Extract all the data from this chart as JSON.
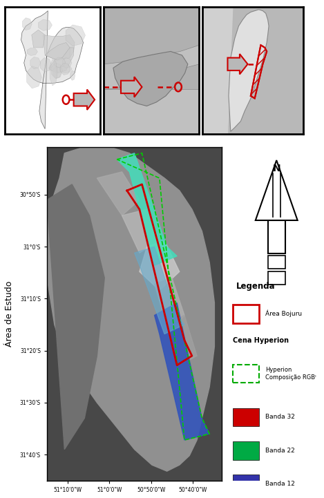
{
  "fig_width": 4.69,
  "fig_height": 7.21,
  "fig_dpi": 100,
  "bg_color": "#ffffff",
  "arrow_color": "#cc0000",
  "arrow_fill": "#b8b8b8",
  "area_red": "#cc0000",
  "map_dark_bg": "#484848",
  "legend_title": "Legenda",
  "ylabel_main": "Área de Estudo",
  "xtick_labels": [
    "51°10'0\"W",
    "51°0'0\"W",
    "50°50'0\"W",
    "50°40'0\"W"
  ],
  "ytick_labels": [
    "30°50'S",
    "31°0'S",
    "31°10'S",
    "31°20'S",
    "31°30'S",
    "31°40'S"
  ],
  "xtick_vals": [
    -51.1667,
    -51.0,
    -50.8333,
    -50.6667
  ],
  "ytick_vals": [
    -30.8333,
    -31.0,
    -31.1667,
    -31.3333,
    -31.5,
    -31.6667
  ],
  "xlim": [
    -51.25,
    -50.55
  ],
  "ylim": [
    -31.75,
    -30.68
  ],
  "band32_color": "#cc0000",
  "band22_color": "#00aa44",
  "band12_color": "#3333aa",
  "hyperion_edge_color": "#00cc00"
}
